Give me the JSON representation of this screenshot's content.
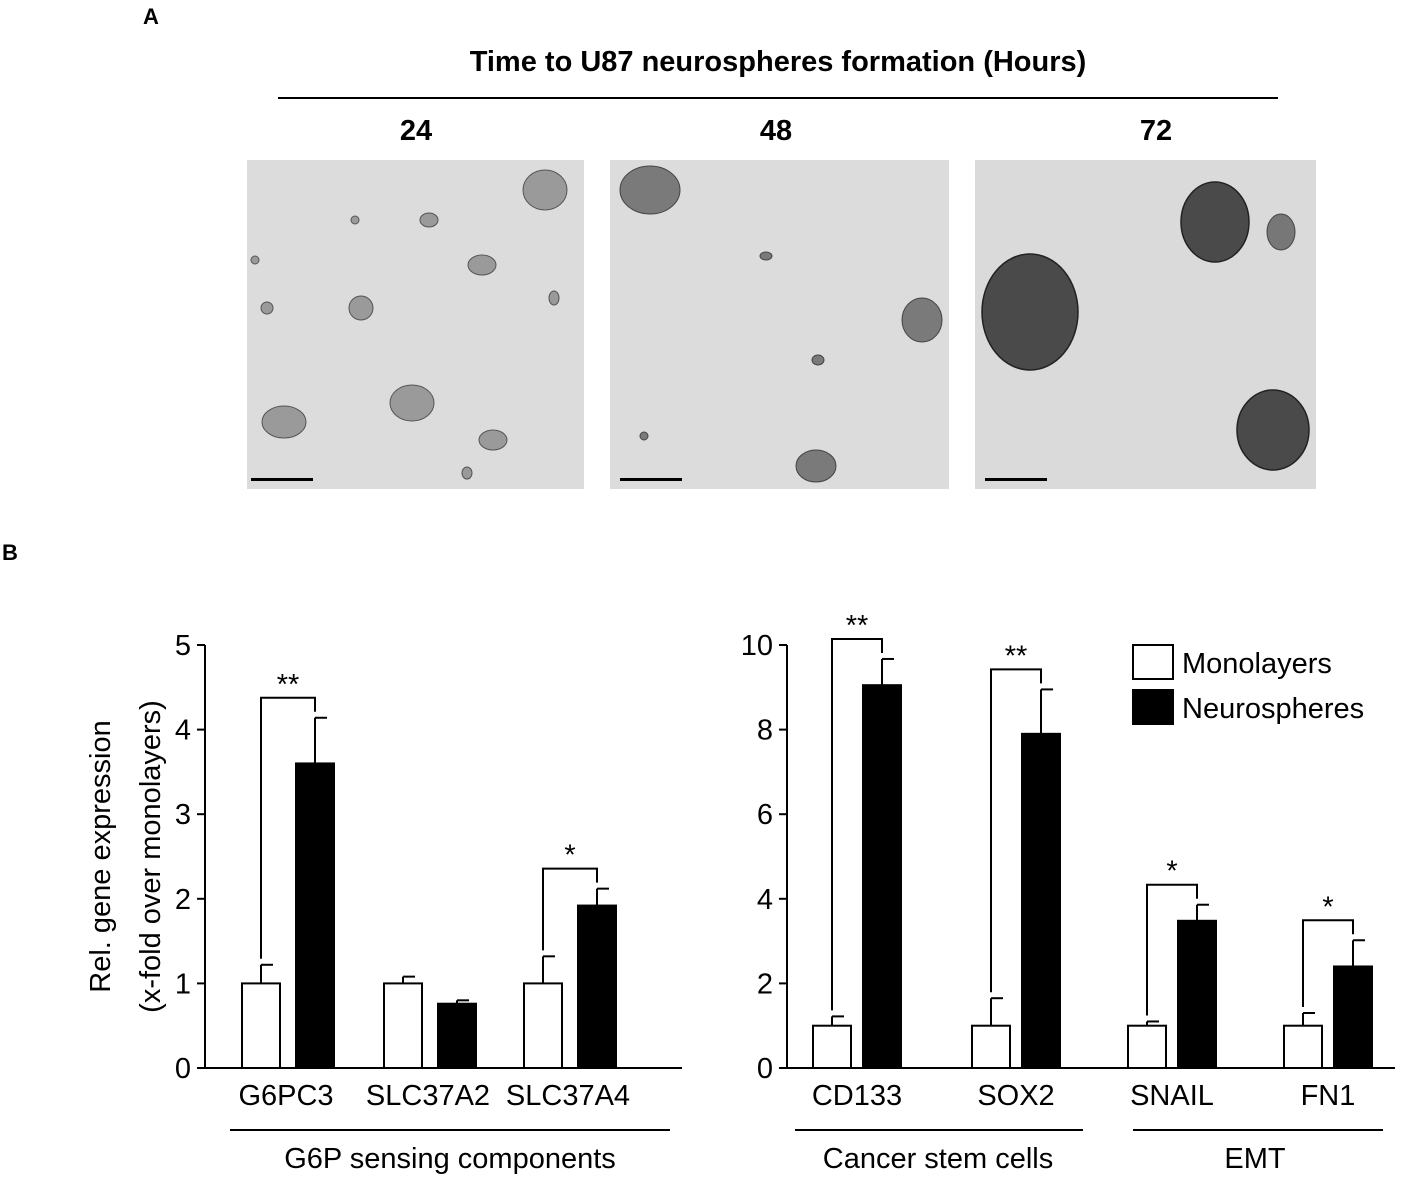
{
  "panel_a": {
    "letter": "A",
    "header": "Time to U87 neurospheres formation (Hours)",
    "time_labels": [
      "24",
      "48",
      "72"
    ]
  },
  "panel_b": {
    "letter": "B"
  },
  "chart_data": [
    {
      "type": "bar",
      "ylabel_line1": "Rel. gene expression",
      "ylabel_line2": "(x-fold over monolayers)",
      "ylim": [
        0,
        5
      ],
      "yticks": [
        "0",
        "1",
        "2",
        "3",
        "4",
        "5"
      ],
      "categories": [
        "G6PC3",
        "SLC37A2",
        "SLC37A4"
      ],
      "group_label": "G6P sensing components",
      "series": [
        {
          "name": "Monolayers",
          "color": "#ffffff",
          "values": [
            1.0,
            1.0,
            1.0
          ],
          "errors": [
            0.22,
            0.08,
            0.32
          ]
        },
        {
          "name": "Neurospheres",
          "color": "#000000",
          "values": [
            3.6,
            0.76,
            1.92
          ],
          "errors": [
            0.54,
            0.04,
            0.2
          ]
        }
      ],
      "significance": [
        "**",
        "",
        "*"
      ]
    },
    {
      "type": "bar",
      "ylim": [
        0,
        10
      ],
      "yticks": [
        "0",
        "2",
        "4",
        "6",
        "8",
        "10"
      ],
      "categories": [
        "CD133",
        "SOX2",
        "SNAIL",
        "FN1"
      ],
      "groups": [
        {
          "label": "Cancer stem cells",
          "categories": [
            "CD133",
            "SOX2"
          ]
        },
        {
          "label": "EMT",
          "categories": [
            "SNAIL",
            "FN1"
          ]
        }
      ],
      "series": [
        {
          "name": "Monolayers",
          "color": "#ffffff",
          "values": [
            1.0,
            1.0,
            1.0,
            1.0
          ],
          "errors": [
            0.22,
            0.65,
            0.1,
            0.3
          ]
        },
        {
          "name": "Neurospheres",
          "color": "#000000",
          "values": [
            9.05,
            7.9,
            3.48,
            2.4
          ],
          "errors": [
            0.62,
            1.05,
            0.38,
            0.62
          ]
        }
      ],
      "significance": [
        "**",
        "**",
        "*",
        "*"
      ],
      "legend": [
        "Monolayers",
        "Neurospheres"
      ],
      "legend_position": "top-right"
    }
  ]
}
